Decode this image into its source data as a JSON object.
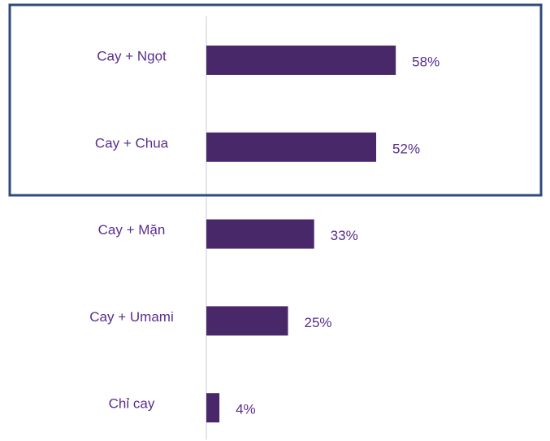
{
  "chart_data": {
    "type": "bar",
    "orientation": "horizontal",
    "categories": [
      "Cay + Ngọt",
      "Cay + Chua",
      "Cay + Mặn",
      "Cay + Umami",
      "Chỉ cay"
    ],
    "values": [
      58,
      52,
      33,
      25,
      4
    ],
    "value_labels": [
      "58%",
      "52%",
      "33%",
      "25%",
      "4%"
    ],
    "color": "#482868"
  }
}
